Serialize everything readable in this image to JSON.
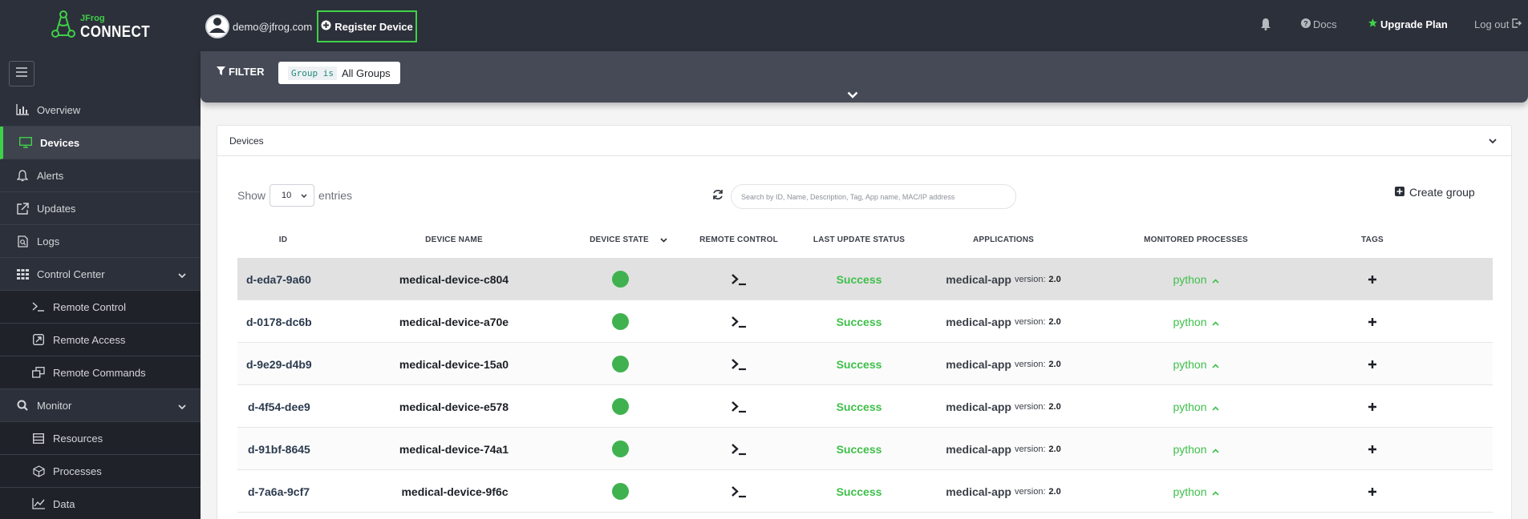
{
  "header": {
    "logo_small": "JFrog",
    "logo_big": "CONNECT",
    "user_email": "demo@jfrog.com",
    "register_label": "Register Device",
    "docs_label": "Docs",
    "upgrade_label": "Upgrade Plan",
    "logout_label": "Log out"
  },
  "sidebar": {
    "items": [
      {
        "label": "Overview",
        "icon": "chart-bar-icon"
      },
      {
        "label": "Devices",
        "icon": "monitor-icon",
        "active": true
      },
      {
        "label": "Alerts",
        "icon": "bell-icon"
      },
      {
        "label": "Updates",
        "icon": "external-link-icon"
      },
      {
        "label": "Logs",
        "icon": "log-file-icon"
      },
      {
        "label": "Control Center",
        "icon": "grid-icon",
        "expandable": true
      },
      {
        "label": "Remote Control",
        "icon": "terminal-icon",
        "sub": true
      },
      {
        "label": "Remote Access",
        "icon": "remote-access-icon",
        "sub": true
      },
      {
        "label": "Remote Commands",
        "icon": "windows-icon",
        "sub": true
      },
      {
        "label": "Monitor",
        "icon": "search-icon",
        "expandable": true
      },
      {
        "label": "Resources",
        "icon": "server-icon",
        "sub": true
      },
      {
        "label": "Processes",
        "icon": "cube-icon",
        "sub": true
      },
      {
        "label": "Data",
        "icon": "line-chart-icon",
        "sub": true
      }
    ]
  },
  "filter": {
    "label": "FILTER",
    "chip_key": "Group is",
    "chip_value": "All Groups"
  },
  "devices_card": {
    "title": "Devices",
    "show_label": "Show",
    "entries_value": "10",
    "entries_label": "entries",
    "search_placeholder": "Search by ID, Name, Description, Tag, App name, MAC/IP address",
    "create_group_label": "Create group",
    "columns": [
      "ID",
      "DEVICE NAME",
      "DEVICE STATE",
      "REMOTE CONTROL",
      "LAST UPDATE STATUS",
      "APPLICATIONS",
      "MONITORED PROCESSES",
      "TAGS"
    ],
    "rows": [
      {
        "id": "d-eda7-9a60",
        "name": "medical-device-c804",
        "status": "Success",
        "app": "medical-app",
        "version_label": "version:",
        "version": "2.0",
        "process": "python"
      },
      {
        "id": "d-0178-dc6b",
        "name": "medical-device-a70e",
        "status": "Success",
        "app": "medical-app",
        "version_label": "version:",
        "version": "2.0",
        "process": "python"
      },
      {
        "id": "d-9e29-d4b9",
        "name": "medical-device-15a0",
        "status": "Success",
        "app": "medical-app",
        "version_label": "version:",
        "version": "2.0",
        "process": "python"
      },
      {
        "id": "d-4f54-dee9",
        "name": "medical-device-e578",
        "status": "Success",
        "app": "medical-app",
        "version_label": "version:",
        "version": "2.0",
        "process": "python"
      },
      {
        "id": "d-91bf-8645",
        "name": "medical-device-74a1",
        "status": "Success",
        "app": "medical-app",
        "version_label": "version:",
        "version": "2.0",
        "process": "python"
      },
      {
        "id": "d-7a6a-9cf7",
        "name": "medical-device-9f6c",
        "status": "Success",
        "app": "medical-app",
        "version_label": "version:",
        "version": "2.0",
        "process": "python"
      }
    ]
  },
  "colors": {
    "accent": "#3ed147",
    "topbar": "#2c303a",
    "success": "#3ebf4a",
    "state_online": "#3fb24f"
  }
}
